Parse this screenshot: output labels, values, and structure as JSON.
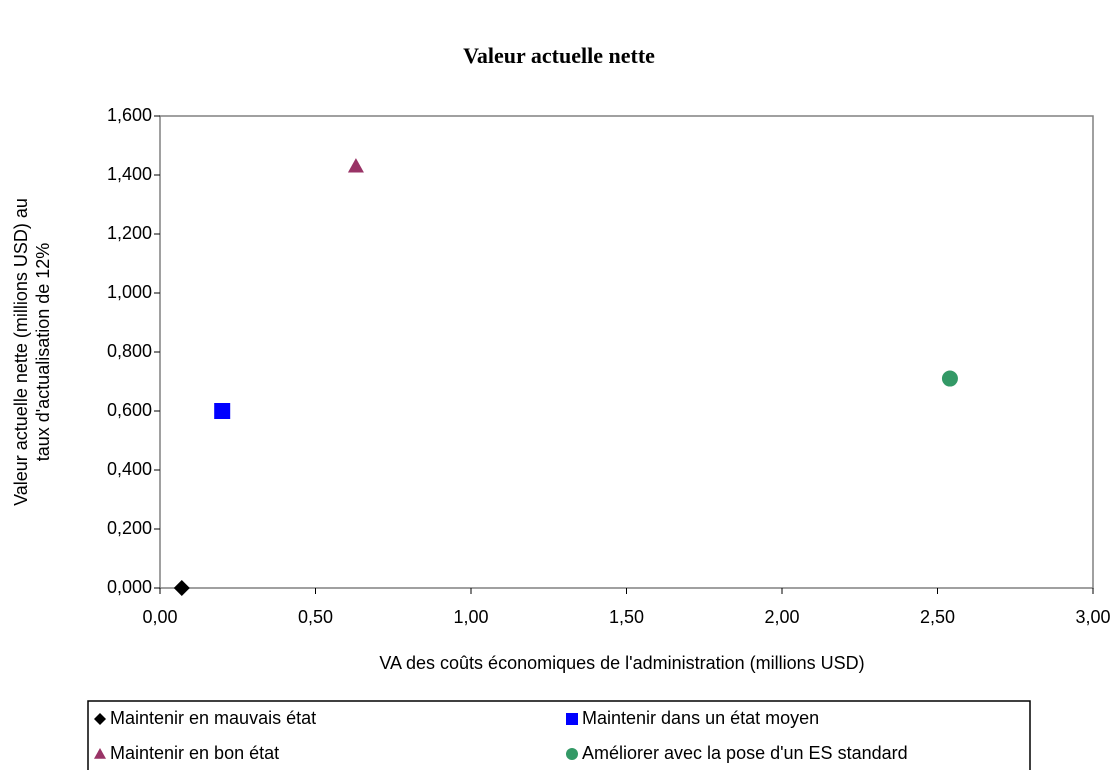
{
  "chart_data": {
    "type": "scatter",
    "title": "Valeur actuelle nette",
    "xlabel": "VA des coûts économiques de l'administration (millions USD)",
    "ylabel": [
      "Valeur actuelle nette (millions USD) au",
      "taux d'actualisation de 12%"
    ],
    "xlim": [
      0,
      3
    ],
    "ylim": [
      0,
      1.6
    ],
    "xticks": [
      {
        "value": 0,
        "label": "0,00"
      },
      {
        "value": 0.5,
        "label": "0,50"
      },
      {
        "value": 1,
        "label": "1,00"
      },
      {
        "value": 1.5,
        "label": "1,50"
      },
      {
        "value": 2,
        "label": "2,00"
      },
      {
        "value": 2.5,
        "label": "2,50"
      },
      {
        "value": 3,
        "label": "3,00"
      }
    ],
    "yticks": [
      {
        "value": 0,
        "label": "0,000"
      },
      {
        "value": 0.2,
        "label": "0,200"
      },
      {
        "value": 0.4,
        "label": "0,400"
      },
      {
        "value": 0.6,
        "label": "0,600"
      },
      {
        "value": 0.8,
        "label": "0,800"
      },
      {
        "value": 1,
        "label": "1,000"
      },
      {
        "value": 1.2,
        "label": "1,200"
      },
      {
        "value": 1.4,
        "label": "1,400"
      },
      {
        "value": 1.6,
        "label": "1,600"
      }
    ],
    "grid": false,
    "series": [
      {
        "name": "Maintenir en mauvais état",
        "color": "#000000",
        "marker": "diamond",
        "x": [
          0.07
        ],
        "values": [
          0
        ]
      },
      {
        "name": "Maintenir dans un état moyen",
        "color": "#0000ff",
        "marker": "square",
        "x": [
          0.2
        ],
        "values": [
          0.6
        ]
      },
      {
        "name": "Maintenir en bon état",
        "color": "#993366",
        "marker": "triangle",
        "x": [
          0.63
        ],
        "values": [
          1.43
        ]
      },
      {
        "name": "Améliorer avec la pose d'un ES standard",
        "color": "#339966",
        "marker": "circle",
        "x": [
          2.54
        ],
        "values": [
          0.71
        ]
      }
    ]
  }
}
